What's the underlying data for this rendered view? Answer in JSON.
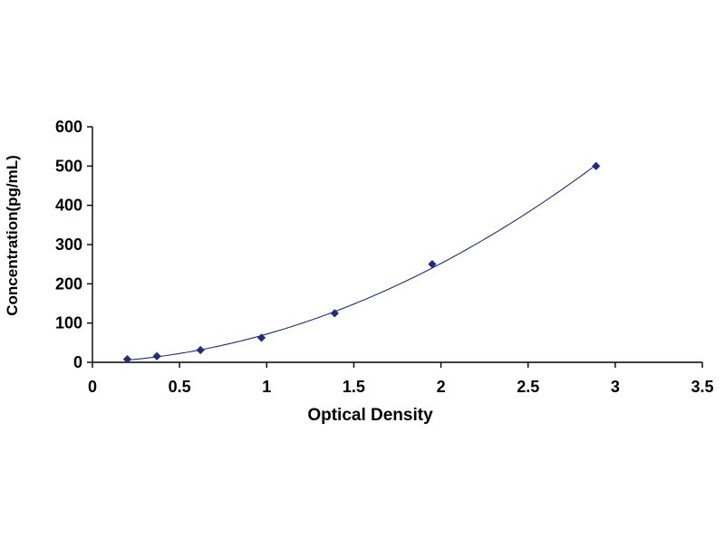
{
  "chart_data": {
    "type": "scatter",
    "title": "",
    "xlabel": "Optical Density",
    "ylabel": "Concentration(pg/mL)",
    "xlim": [
      0,
      3.5
    ],
    "ylim": [
      0,
      600
    ],
    "x_ticks": [
      "0",
      "0.5",
      "1",
      "1.5",
      "2",
      "2.5",
      "3",
      "3.5"
    ],
    "y_ticks": [
      "0",
      "100",
      "200",
      "300",
      "400",
      "500",
      "600"
    ],
    "grid": false,
    "legend": "none",
    "series": [
      {
        "x": [
          0.2,
          0.37,
          0.62,
          0.97,
          1.39,
          1.95,
          2.89
        ],
        "y": [
          7.8,
          15.6,
          31.2,
          62.5,
          125,
          250,
          500
        ],
        "marker": "diamond",
        "trendline": "polynomial"
      }
    ],
    "colors": {
      "marker": "#1F2D7A",
      "line": "#1F2D7A",
      "axis": "#000000"
    }
  }
}
